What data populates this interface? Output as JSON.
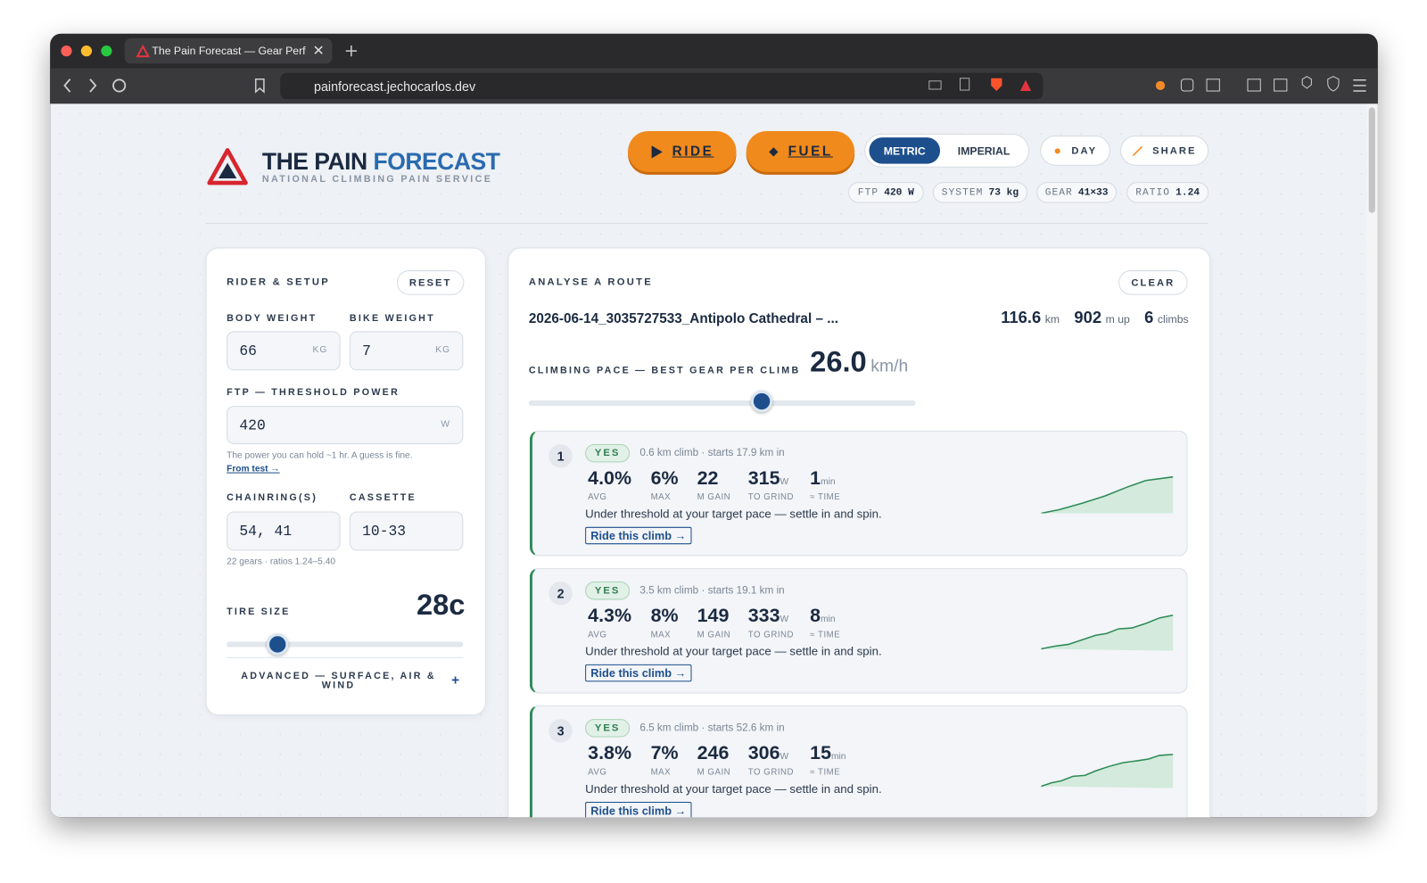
{
  "browser": {
    "tab_title": "The Pain Forecast — Gear Perf",
    "url": "painforecast.jechocarlos.dev"
  },
  "header": {
    "title_1": "THE PAIN",
    "title_2": "FORECAST",
    "subtitle": "NATIONAL CLIMBING PAIN SERVICE",
    "ride": "RIDE",
    "fuel": "FUEL",
    "units": [
      "METRIC",
      "IMPERIAL"
    ],
    "day": "DAY",
    "share": "SHARE",
    "chips": [
      {
        "label": "FTP",
        "value": "420 W"
      },
      {
        "label": "SYSTEM",
        "value": "73 kg"
      },
      {
        "label": "GEAR",
        "value": "41×33"
      },
      {
        "label": "RATIO",
        "value": "1.24"
      }
    ]
  },
  "rider": {
    "title": "RIDER & SETUP",
    "reset": "RESET",
    "body_weight": {
      "label": "BODY WEIGHT",
      "value": "66",
      "unit": "KG"
    },
    "bike_weight": {
      "label": "BIKE WEIGHT",
      "value": "7",
      "unit": "KG"
    },
    "ftp": {
      "label": "FTP — THRESHOLD POWER",
      "value": "420",
      "unit": "W"
    },
    "ftp_hint": "The power you can hold ~1 hr. A guess is fine.",
    "ftp_link": "From test →",
    "chainrings": {
      "label": "CHAINRING(S)",
      "value": "54, 41"
    },
    "cassette": {
      "label": "CASSETTE",
      "value": "10-33"
    },
    "gears_hint": "22 gears · ratios 1.24–5.40",
    "tire": {
      "label": "TIRE SIZE",
      "value": "28c"
    },
    "advanced": "ADVANCED — SURFACE, AIR & WIND",
    "advanced_toggle": "+"
  },
  "route": {
    "title": "ANALYSE A ROUTE",
    "clear": "CLEAR",
    "file": "2026-06-14_3035727533_Antipolo Cathedral – ...",
    "stats": [
      {
        "value": "116.6",
        "unit": "km"
      },
      {
        "value": "902",
        "unit": "m up"
      },
      {
        "value": "6",
        "unit": "climbs"
      }
    ],
    "pace_label": "CLIMBING PACE — BEST GEAR PER CLIMB",
    "pace_value": "26.0",
    "pace_unit": "km/h",
    "climbs": [
      {
        "index": "1",
        "verdict": "YES",
        "meta": "0.6 km climb · starts 17.9 km in",
        "stats": [
          {
            "value": "4.0%",
            "label": "AVG"
          },
          {
            "value": "6%",
            "label": "MAX"
          },
          {
            "value": "22",
            "label": "M GAIN"
          },
          {
            "value": "315",
            "unit": "W",
            "label": "TO GRIND"
          },
          {
            "value": "1",
            "unit": "min",
            "label": "≈ TIME"
          }
        ],
        "message": "Under threshold at your target pace — settle in and spin.",
        "link": "Ride this climb →"
      },
      {
        "index": "2",
        "verdict": "YES",
        "meta": "3.5 km climb · starts 19.1 km in",
        "stats": [
          {
            "value": "4.3%",
            "label": "AVG"
          },
          {
            "value": "8%",
            "label": "MAX"
          },
          {
            "value": "149",
            "label": "M GAIN"
          },
          {
            "value": "333",
            "unit": "W",
            "label": "TO GRIND"
          },
          {
            "value": "8",
            "unit": "min",
            "label": "≈ TIME"
          }
        ],
        "message": "Under threshold at your target pace — settle in and spin.",
        "link": "Ride this climb →"
      },
      {
        "index": "3",
        "verdict": "YES",
        "meta": "6.5 km climb · starts 52.6 km in",
        "stats": [
          {
            "value": "3.8%",
            "label": "AVG"
          },
          {
            "value": "7%",
            "label": "MAX"
          },
          {
            "value": "246",
            "label": "M GAIN"
          },
          {
            "value": "306",
            "unit": "W",
            "label": "TO GRIND"
          },
          {
            "value": "15",
            "unit": "min",
            "label": "≈ TIME"
          }
        ],
        "message": "Under threshold at your target pace — settle in and spin.",
        "link": "Ride this climb →"
      }
    ]
  }
}
